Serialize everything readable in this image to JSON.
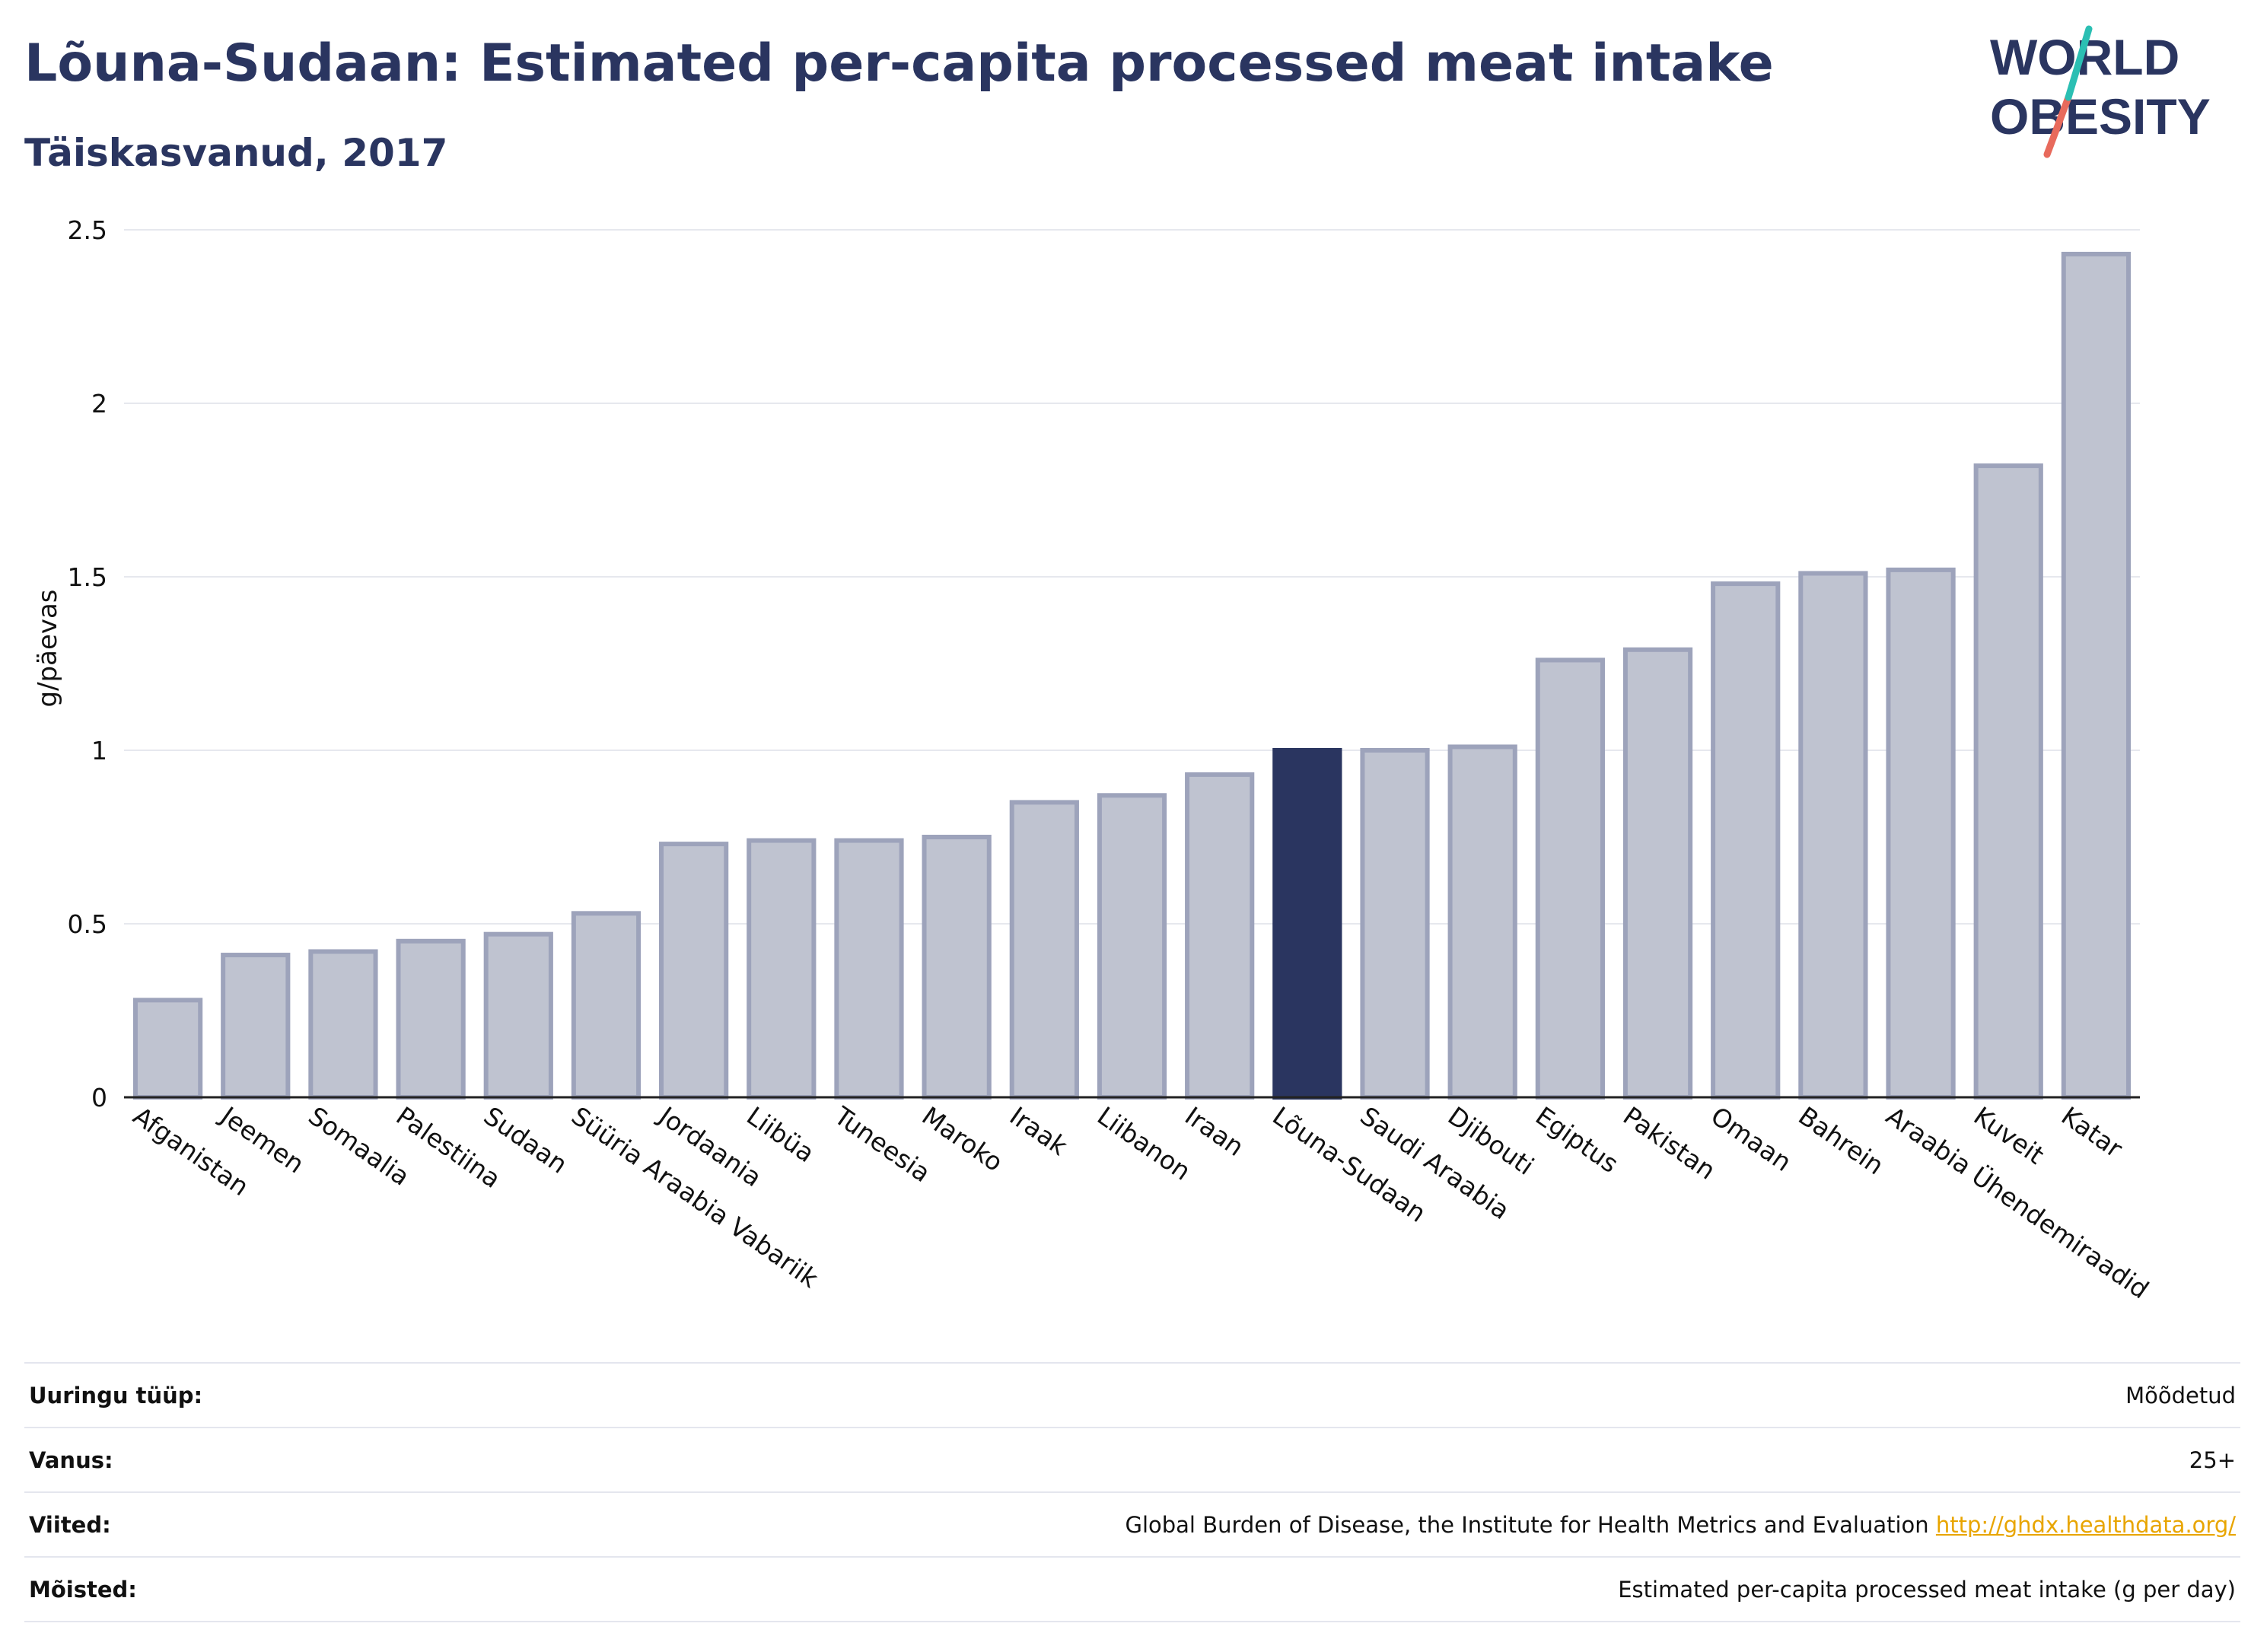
{
  "header": {
    "title": "Lõuna-Sudaan: Estimated per-capita processed meat intake",
    "subtitle": "Täiskasvanud, 2017"
  },
  "logo": {
    "line1": "WORLD",
    "line2": "OBESITY",
    "colors": {
      "text": "#2a3560",
      "slash_top": "#2bbfb3",
      "slash_bottom": "#e86a5c"
    }
  },
  "chart_data": {
    "type": "bar",
    "title": "Lõuna-Sudaan: Estimated per-capita processed meat intake",
    "subtitle": "Täiskasvanud, 2017",
    "xlabel": "",
    "ylabel": "g/päevas",
    "ylim": [
      0,
      2.5
    ],
    "yticks": [
      0,
      0.5,
      1,
      1.5,
      2,
      2.5
    ],
    "ytick_labels": [
      "0",
      "0.5",
      "1",
      "1.5",
      "2",
      "2.5"
    ],
    "grid": true,
    "highlight": "Lõuna-Sudaan",
    "colors": {
      "bar": "#bfc3d0",
      "bar_border": "#9da3bb",
      "highlight": "#2a3560",
      "grid": "#e6e8ee",
      "axis": "#222222"
    },
    "categories": [
      "Afganistan",
      "Jeemen",
      "Somaalia",
      "Palestiina",
      "Sudaan",
      "Süüria Araabia Vabariik",
      "Jordaania",
      "Liibüa",
      "Tuneesia",
      "Maroko",
      "Iraak",
      "Liibanon",
      "Iraan",
      "Lõuna-Sudaan",
      "Saudi Araabia",
      "Djibouti",
      "Egiptus",
      "Pakistan",
      "Omaan",
      "Bahrein",
      "Araabia Ühendemiraadid",
      "Kuveit",
      "Katar"
    ],
    "values": [
      0.28,
      0.41,
      0.42,
      0.45,
      0.47,
      0.53,
      0.73,
      0.74,
      0.74,
      0.75,
      0.85,
      0.87,
      0.93,
      1.0,
      1.0,
      1.01,
      1.26,
      1.29,
      1.48,
      1.51,
      1.52,
      1.82,
      2.43
    ]
  },
  "info": [
    {
      "key": "Uuringu tüüp:",
      "value": "Mõõdetud"
    },
    {
      "key": "Vanus:",
      "value": "25+"
    },
    {
      "key": "Viited:",
      "value": "Global Burden of Disease, the Institute for Health Metrics and Evaluation",
      "link": "http://ghdx.healthdata.org/"
    },
    {
      "key": "Mõisted:",
      "value": "Estimated per-capita processed meat intake (g per day)"
    }
  ]
}
